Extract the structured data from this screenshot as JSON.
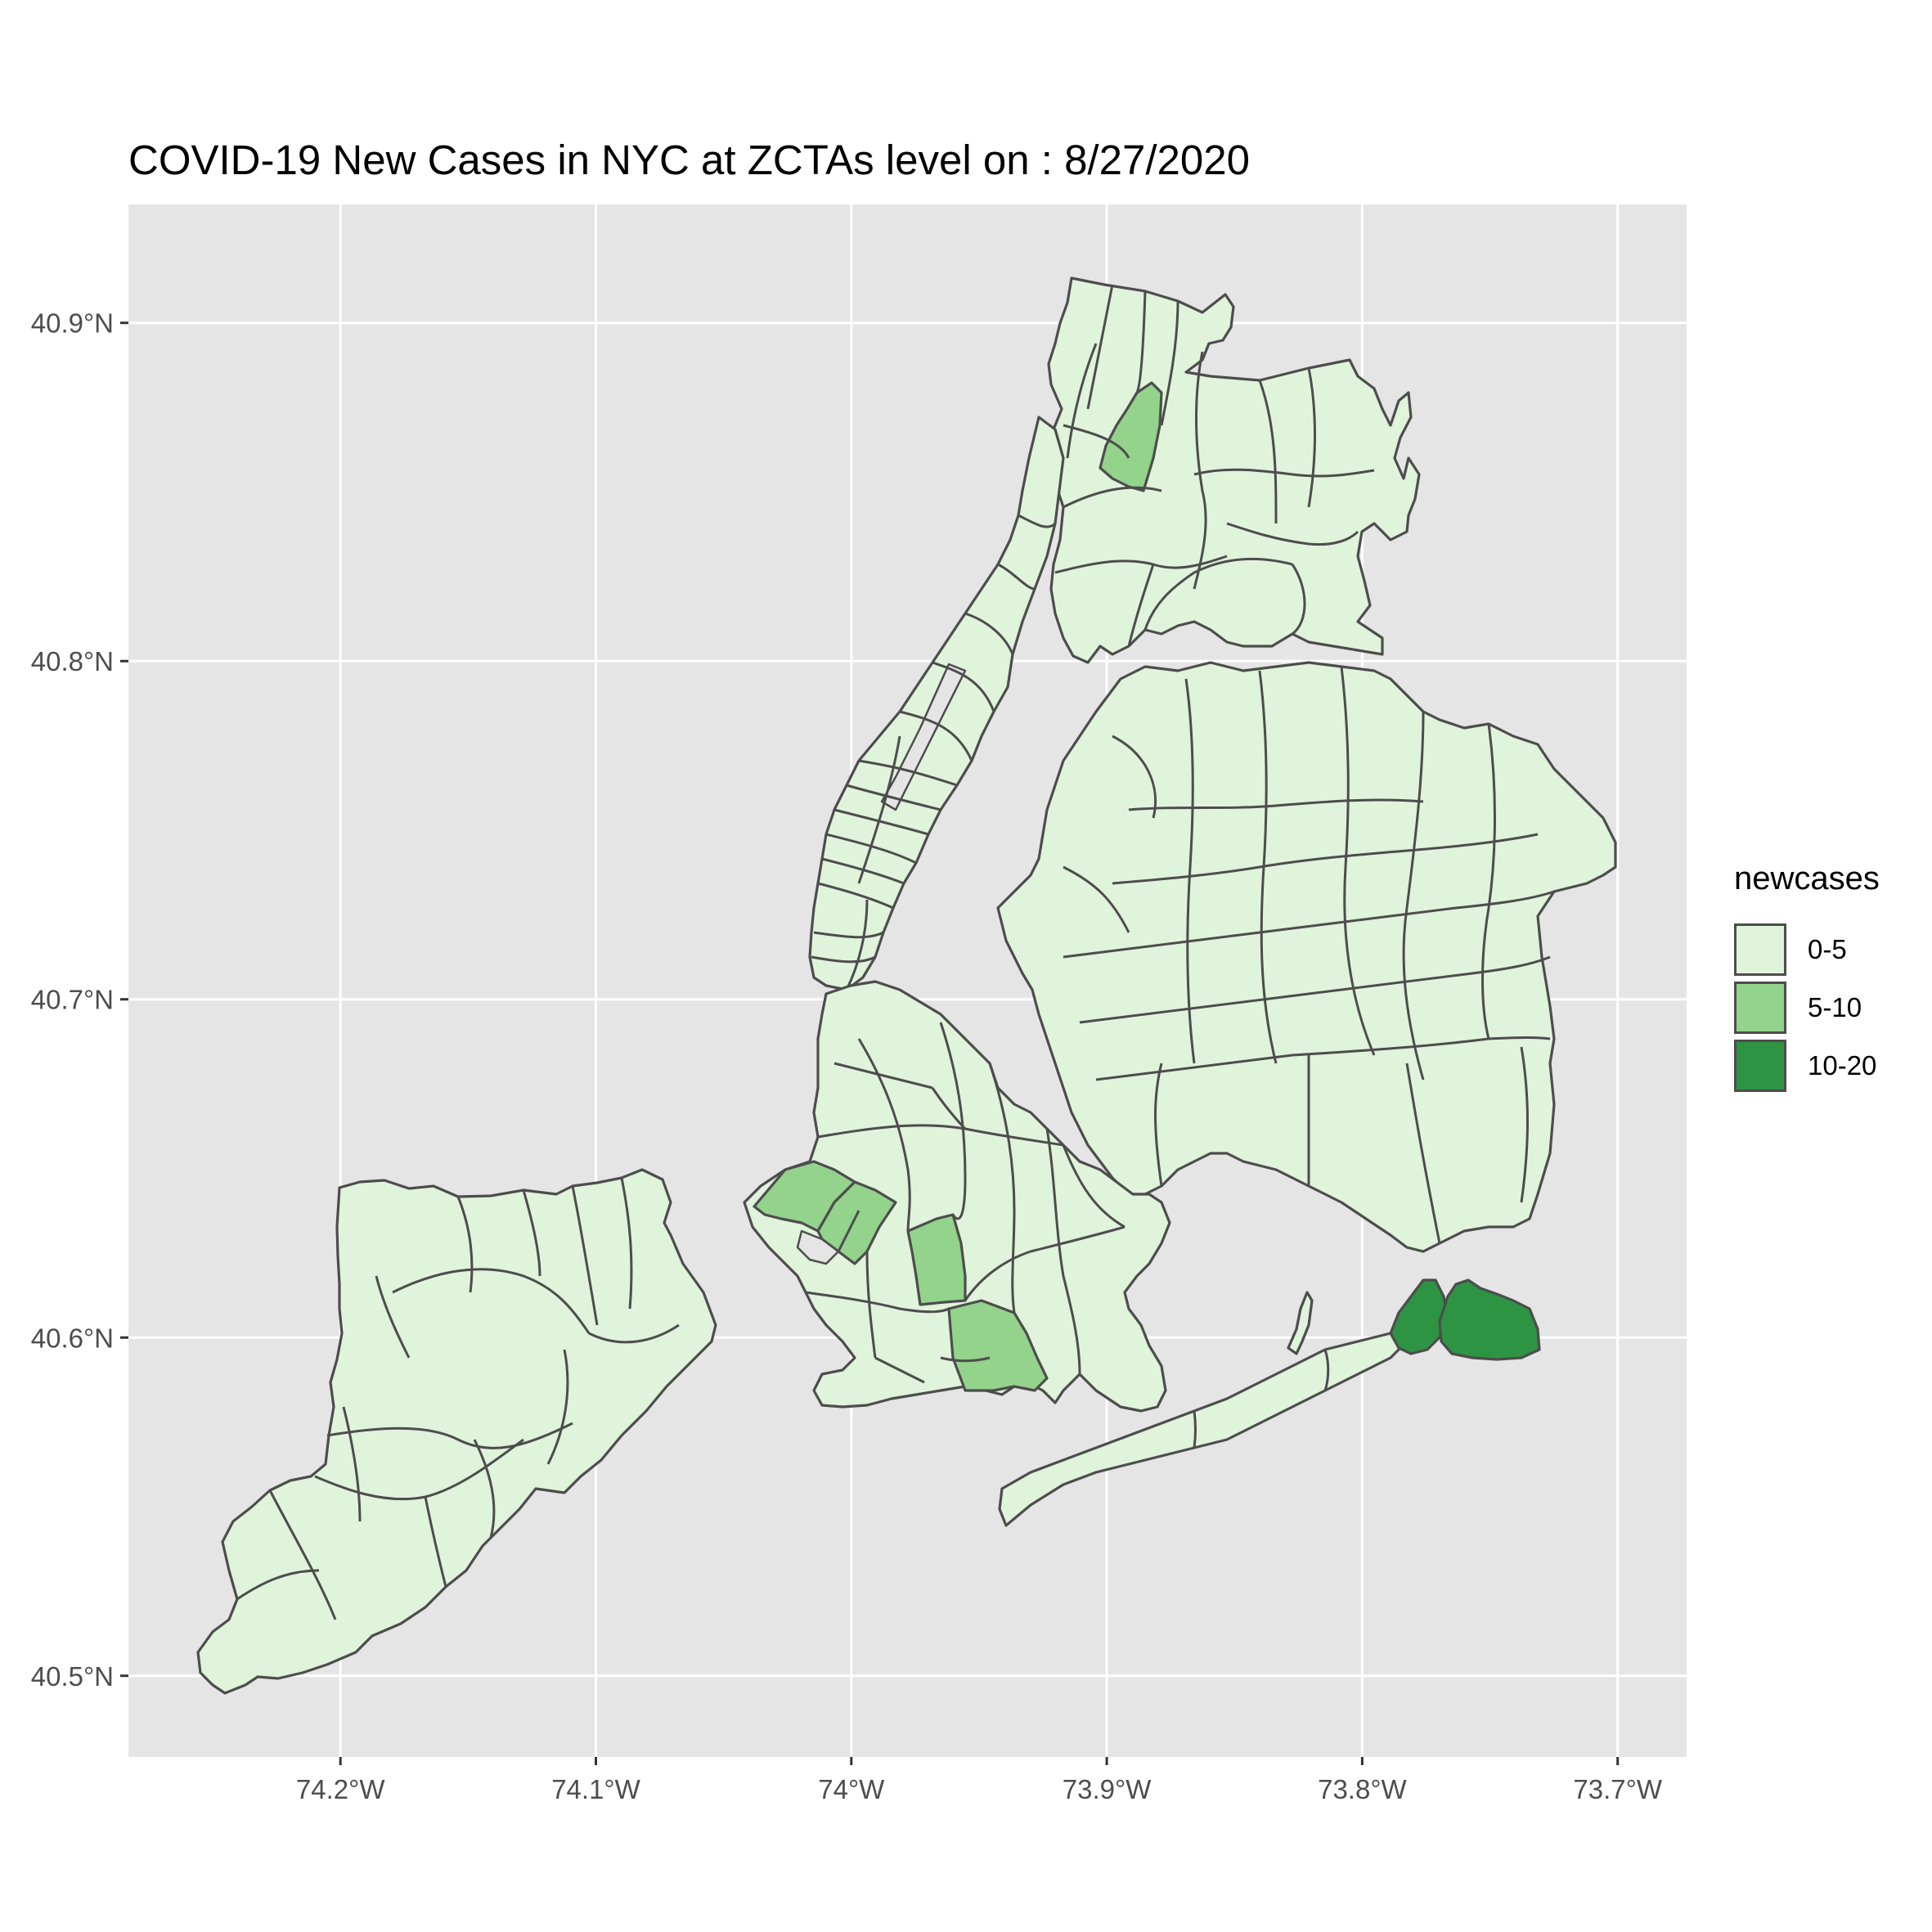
{
  "title": "COVID-19 New Cases in NYC at ZCTAs level on : 8/27/2020",
  "chart_data": {
    "type": "choropleth map",
    "title": "COVID-19 New Cases in NYC at ZCTAs level on : 8/27/2020",
    "xlabel": "",
    "ylabel": "",
    "x_ticks": [
      "74.2°W",
      "74.1°W",
      "74°W",
      "73.9°W",
      "73.8°W",
      "73.7°W"
    ],
    "x_tick_values": [
      -74.2,
      -74.1,
      -74.0,
      -73.9,
      -73.8,
      -73.7
    ],
    "y_ticks": [
      "40.5°N",
      "40.6°N",
      "40.7°N",
      "40.8°N",
      "40.9°N"
    ],
    "y_tick_values": [
      40.5,
      40.6,
      40.7,
      40.8,
      40.9
    ],
    "xlim": [
      -74.283,
      -73.673
    ],
    "ylim": [
      40.476,
      40.935
    ],
    "grid": true,
    "background": "#e5e5e5",
    "grid_color": "#ffffff",
    "border_color": "#4d4d4d",
    "legend": {
      "title": "newcases",
      "position": "right",
      "entries": [
        {
          "label": "0-5",
          "color": "#e0f3db"
        },
        {
          "label": "5-10",
          "color": "#93d38b"
        },
        {
          "label": "10-20",
          "color": "#2c9443"
        }
      ]
    },
    "highlighted_areas": [
      {
        "area": "Bronx ZCTA (north-central)",
        "category": "5-10"
      },
      {
        "area": "Brooklyn ZCTA (Bay Ridge west)",
        "category": "5-10"
      },
      {
        "area": "Brooklyn ZCTA (Bay Ridge east)",
        "category": "5-10"
      },
      {
        "area": "Brooklyn ZCTA (Bensonhurst)",
        "category": "5-10"
      },
      {
        "area": "Brooklyn ZCTA (Gravesend)",
        "category": "5-10"
      },
      {
        "area": "Queens ZCTA (Far Rockaway east)",
        "category": "10-20"
      },
      {
        "area": "Queens ZCTA (Far Rockaway west)",
        "category": "10-20"
      }
    ]
  }
}
